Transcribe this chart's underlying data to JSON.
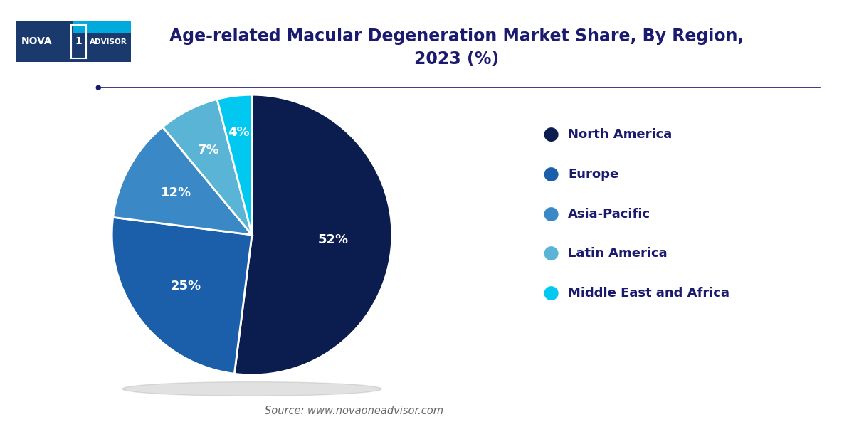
{
  "title": "Age-related Macular Degeneration Market Share, By Region,\n2023 (%)",
  "labels": [
    "North America",
    "Europe",
    "Asia-Pacific",
    "Latin America",
    "Middle East and Africa"
  ],
  "values": [
    52,
    25,
    12,
    7,
    4
  ],
  "colors": [
    "#0b1c4e",
    "#1b5faa",
    "#3a88c5",
    "#5ab4d6",
    "#00c8f0"
  ],
  "pct_labels": [
    "52%",
    "25%",
    "12%",
    "7%",
    "4%"
  ],
  "title_color": "#1a1a6e",
  "legend_text_color": "#1a1a6e",
  "source_text": "Source: www.novaoneadvisor.com",
  "background_color": "#ffffff",
  "start_angle": 90,
  "separator_line_color": "#1a1a6e",
  "logo_bg": "#1a3a6e",
  "logo_cyan": "#00aadd"
}
